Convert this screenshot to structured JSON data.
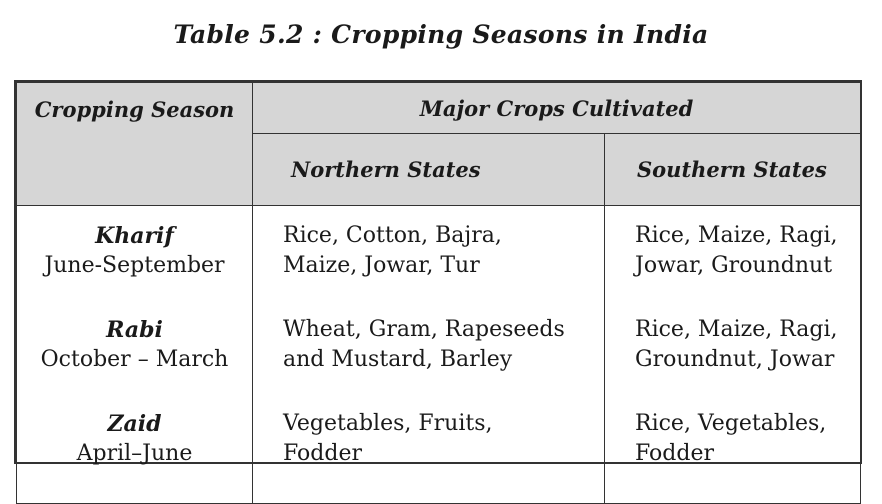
{
  "title": "Table 5.2 : Cropping Seasons in India",
  "headers": {
    "season": "Cropping Season",
    "major": "Major Crops Cultivated",
    "north": "Northern States",
    "south": "Southern States"
  },
  "rows": [
    {
      "season": "Kharif",
      "period": "June-September",
      "north_line1": "Rice, Cotton, Bajra,",
      "north_line2": "Maize, Jowar, Tur",
      "south_line1": "Rice, Maize, Ragi,",
      "south_line2": "Jowar, Groundnut"
    },
    {
      "season": "Rabi",
      "period": "October – March",
      "north_line1": "Wheat, Gram, Rapeseeds",
      "north_line2": "and Mustard, Barley",
      "south_line1": "Rice, Maize, Ragi,",
      "south_line2": "Groundnut, Jowar"
    },
    {
      "season": "Zaid",
      "period": "April–June",
      "north_line1": "Vegetables, Fruits,",
      "north_line2": "Fodder",
      "south_line1": "Rice, Vegetables,",
      "south_line2": "Fodder"
    }
  ]
}
